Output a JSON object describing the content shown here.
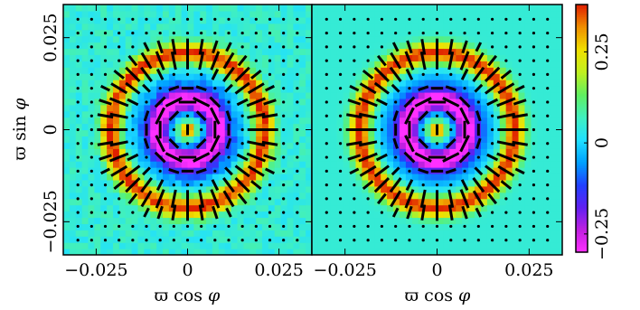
{
  "chart_data": [
    {
      "type": "heatmap",
      "panel": "left",
      "xlabel": "ϖ cos φ",
      "ylabel": "ϖ sin φ",
      "xlim": [
        -0.034,
        0.034
      ],
      "ylim": [
        -0.034,
        0.034
      ],
      "xticks": [
        -0.025,
        0,
        0.025
      ],
      "xtick_labels": [
        "−0.025",
        "0",
        "0.025"
      ],
      "yticks": [
        -0.025,
        0,
        0.025
      ],
      "ytick_labels": [
        "−0.025",
        "0",
        "0.025"
      ],
      "field": {
        "background": 0.05,
        "components": [
          {
            "kind": "center_spot",
            "amplitude": 0.3,
            "width": 0.0016
          },
          {
            "kind": "ring",
            "radius": 0.008,
            "amplitude": -0.36,
            "width": 0.0022
          },
          {
            "kind": "ring",
            "radius": 0.0125,
            "amplitude": -0.1,
            "width": 0.003
          },
          {
            "kind": "ring",
            "radius": 0.021,
            "amplitude": 0.33,
            "width": 0.002
          }
        ],
        "noise": 0.03
      },
      "overlay": {
        "kind": "polarization_sticks",
        "grid_step": 0.00375,
        "orientation": "perpendicular to radius on outer ring, tangential on inner ring"
      }
    },
    {
      "type": "heatmap",
      "panel": "right",
      "xlabel": "ϖ cos φ",
      "xlim": [
        -0.034,
        0.034
      ],
      "ylim": [
        -0.034,
        0.034
      ],
      "xticks": [
        -0.025,
        0,
        0.025
      ],
      "xtick_labels": [
        "−0.025",
        "0",
        "0.025"
      ],
      "field": {
        "background": 0.05,
        "components": [
          {
            "kind": "center_spot",
            "amplitude": 0.3,
            "width": 0.0016
          },
          {
            "kind": "ring",
            "radius": 0.008,
            "amplitude": -0.36,
            "width": 0.0022
          },
          {
            "kind": "ring",
            "radius": 0.0125,
            "amplitude": -0.1,
            "width": 0.003
          },
          {
            "kind": "ring",
            "radius": 0.021,
            "amplitude": 0.33,
            "width": 0.002
          }
        ],
        "noise": 0.0
      },
      "overlay": {
        "kind": "polarization_sticks",
        "grid_step": 0.00375,
        "orientation": "perpendicular to radius on outer ring, tangential on inner ring"
      }
    }
  ],
  "colorbar": {
    "range": [
      -0.3,
      0.38
    ],
    "ticks": [
      -0.25,
      0,
      0.25
    ],
    "tick_labels": [
      "−0.25",
      "0",
      "0.25"
    ],
    "colormap": [
      "#ff30ff",
      "#c020e0",
      "#6020f0",
      "#2040ff",
      "#00a0ff",
      "#20e0ff",
      "#40f0c0",
      "#60f060",
      "#c0f020",
      "#f0e000",
      "#f09000",
      "#e02000"
    ]
  },
  "labels": {
    "ylabel_prefix": "ϖ sin ",
    "ylabel_phi": "φ",
    "xlabel_left_prefix": "ϖ cos ",
    "xlabel_left_phi": "φ",
    "xlabel_right_prefix": "ϖ cos ",
    "xlabel_right_phi": "φ"
  }
}
